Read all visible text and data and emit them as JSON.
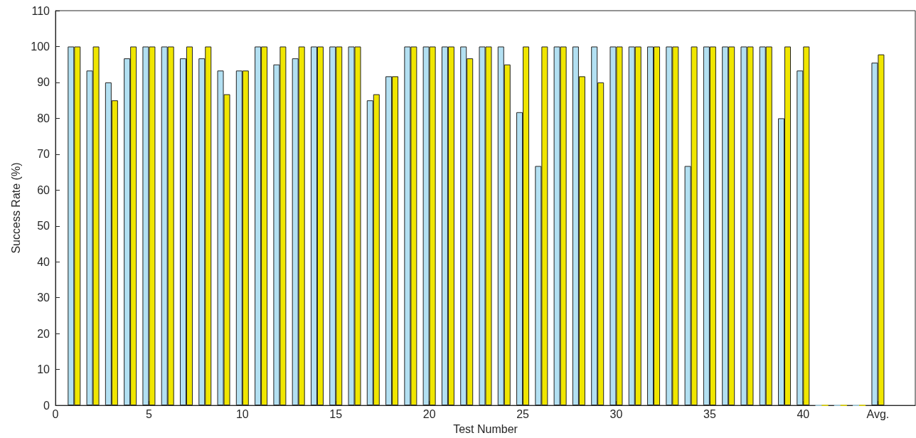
{
  "chart_data": {
    "type": "bar",
    "xlabel": "Test Number",
    "ylabel": "Success Rate (%)",
    "x": [
      1,
      2,
      3,
      4,
      5,
      6,
      7,
      8,
      9,
      10,
      11,
      12,
      13,
      14,
      15,
      16,
      17,
      18,
      19,
      20,
      21,
      22,
      23,
      24,
      25,
      26,
      27,
      28,
      29,
      30,
      31,
      32,
      33,
      34,
      35,
      36,
      37,
      38,
      39,
      40,
      41,
      42,
      43,
      44
    ],
    "series": [
      {
        "color": "#b3e0f2",
        "values": [
          100,
          93.3,
          90,
          96.7,
          100,
          100,
          96.7,
          96.7,
          93.3,
          93.3,
          100,
          95,
          96.7,
          100,
          100,
          100,
          85,
          91.7,
          100,
          100,
          100,
          100,
          100,
          100,
          81.7,
          66.7,
          100,
          100,
          100,
          100,
          100,
          100,
          100,
          66.7,
          100,
          100,
          100,
          100,
          80,
          93.3,
          0,
          0,
          0,
          95.5
        ]
      },
      {
        "color": "#f0e600",
        "values": [
          100,
          100,
          85,
          100,
          100,
          100,
          100,
          100,
          86.7,
          93.3,
          100,
          100,
          100,
          100,
          100,
          100,
          86.7,
          91.7,
          100,
          100,
          100,
          96.7,
          100,
          95,
          100,
          100,
          100,
          91.7,
          90,
          100,
          100,
          100,
          100,
          100,
          100,
          100,
          100,
          100,
          100,
          100,
          0,
          0,
          0,
          97.8
        ]
      }
    ],
    "xlim": [
      0,
      46
    ],
    "xticks": [
      0,
      5,
      10,
      15,
      20,
      25,
      30,
      35,
      40,
      {
        "value": 44,
        "label": "Avg."
      }
    ],
    "ylim": [
      0,
      110
    ],
    "yticks": [
      0,
      10,
      20,
      30,
      40,
      50,
      60,
      70,
      80,
      90,
      100,
      110
    ],
    "grid": false
  }
}
